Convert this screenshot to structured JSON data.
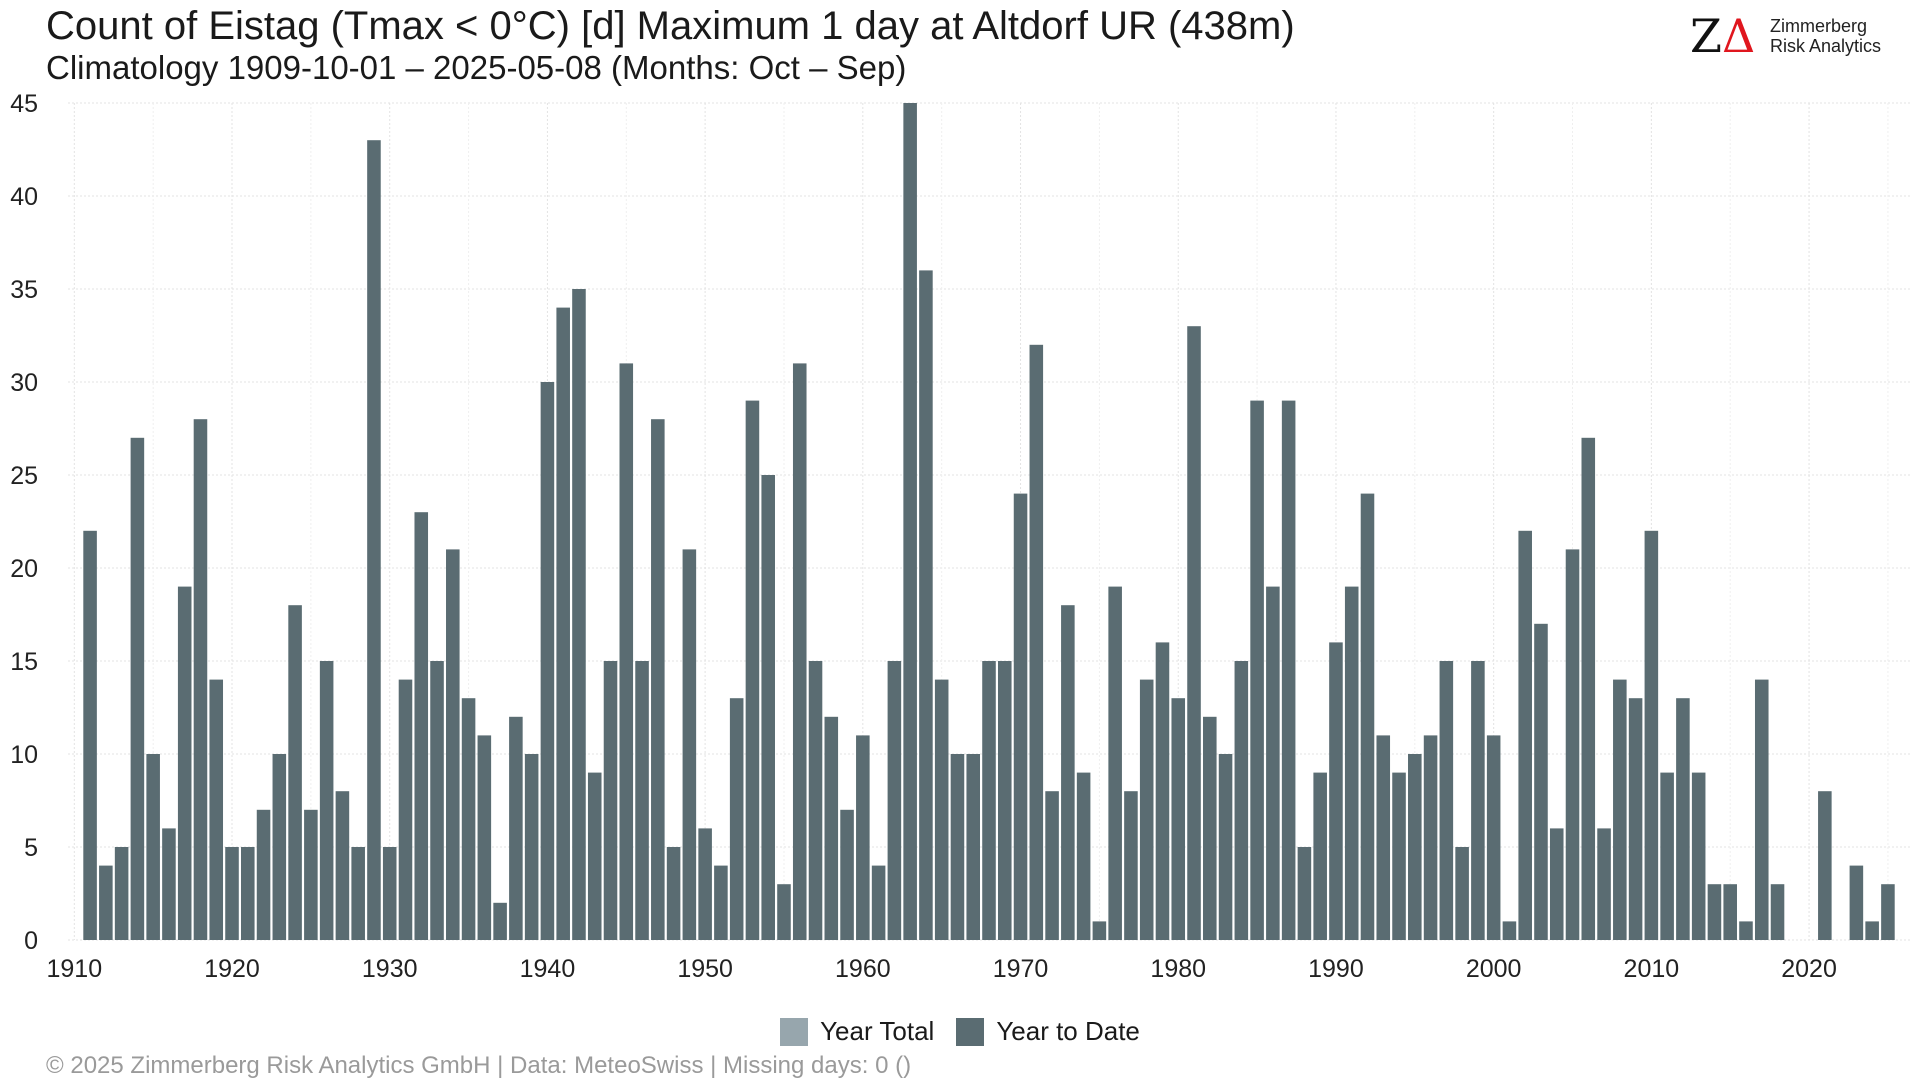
{
  "header": {
    "title": "Count of Eistag (Tmax < 0°C) [d] Maximum 1 day at Altdorf  UR (438m)",
    "subtitle": "Climatology 1909-10-01 – 2025-05-08 (Months: Oct – Sep)"
  },
  "logo": {
    "mark_z": "Z",
    "mark_delta": "Δ",
    "line1": "Zimmerberg",
    "line2": "Risk Analytics"
  },
  "legend": {
    "year_total": "Year Total",
    "year_to_date": "Year to Date"
  },
  "footer": {
    "text": "©  2025 Zimmerberg Risk Analytics GmbH | Data: MeteoSwiss | Missing days: 0 ()"
  },
  "colors": {
    "year_total": "#97a6ad",
    "year_to_date": "#5a6c72",
    "grid": "#e3e3e3",
    "logo_accent": "#e0161e"
  },
  "chart_data": {
    "type": "bar",
    "x_start_year": 1911,
    "x": [
      1911,
      1912,
      1913,
      1914,
      1915,
      1916,
      1917,
      1918,
      1919,
      1920,
      1921,
      1922,
      1923,
      1924,
      1925,
      1926,
      1927,
      1928,
      1929,
      1930,
      1931,
      1932,
      1933,
      1934,
      1935,
      1936,
      1937,
      1938,
      1939,
      1940,
      1941,
      1942,
      1943,
      1944,
      1945,
      1946,
      1947,
      1948,
      1949,
      1950,
      1951,
      1952,
      1953,
      1954,
      1955,
      1956,
      1957,
      1958,
      1959,
      1960,
      1961,
      1962,
      1963,
      1964,
      1965,
      1966,
      1967,
      1968,
      1969,
      1970,
      1971,
      1972,
      1973,
      1974,
      1975,
      1976,
      1977,
      1978,
      1979,
      1980,
      1981,
      1982,
      1983,
      1984,
      1985,
      1986,
      1987,
      1988,
      1989,
      1990,
      1991,
      1992,
      1993,
      1994,
      1995,
      1996,
      1997,
      1998,
      1999,
      2000,
      2001,
      2002,
      2003,
      2004,
      2005,
      2006,
      2007,
      2008,
      2009,
      2010,
      2011,
      2012,
      2013,
      2014,
      2015,
      2016,
      2017,
      2018,
      2019,
      2020,
      2021,
      2022,
      2023,
      2024,
      2025
    ],
    "series": [
      {
        "name": "Year to Date",
        "values": [
          22,
          4,
          5,
          27,
          10,
          6,
          19,
          28,
          14,
          5,
          5,
          7,
          10,
          18,
          7,
          15,
          8,
          5,
          43,
          5,
          14,
          23,
          15,
          21,
          13,
          11,
          2,
          12,
          10,
          30,
          34,
          35,
          9,
          15,
          31,
          15,
          28,
          5,
          21,
          6,
          4,
          13,
          29,
          25,
          3,
          31,
          15,
          12,
          7,
          11,
          4,
          15,
          45,
          36,
          14,
          10,
          10,
          15,
          15,
          24,
          32,
          8,
          18,
          9,
          1,
          19,
          8,
          14,
          16,
          13,
          33,
          12,
          10,
          15,
          29,
          19,
          29,
          5,
          9,
          16,
          19,
          24,
          11,
          9,
          10,
          11,
          15,
          5,
          15,
          11,
          1,
          22,
          17,
          6,
          21,
          27,
          6,
          14,
          13,
          22,
          9,
          13,
          9,
          3,
          3,
          1,
          14,
          3,
          0,
          0,
          8,
          0,
          4,
          1,
          3
        ]
      }
    ],
    "x_ticks": [
      "1910",
      "1920",
      "1930",
      "1940",
      "1950",
      "1960",
      "1970",
      "1980",
      "1990",
      "2000",
      "2010",
      "2020"
    ],
    "y_ticks": [
      "0",
      "5",
      "10",
      "15",
      "20",
      "25",
      "30",
      "35",
      "40",
      "45"
    ],
    "xlim": [
      1909.6,
      2026.4
    ],
    "ylim": [
      0,
      45
    ],
    "grid": true,
    "legend_position": "bottom"
  }
}
